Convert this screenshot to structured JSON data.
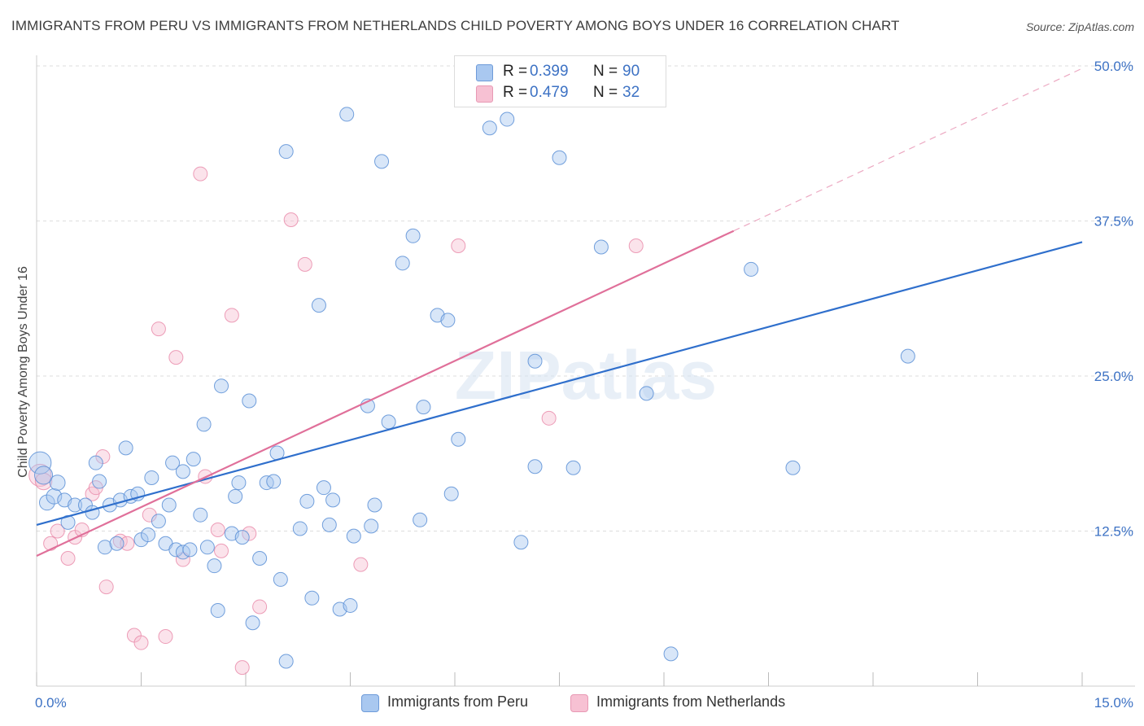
{
  "title": "IMMIGRANTS FROM PERU VS IMMIGRANTS FROM NETHERLANDS CHILD POVERTY AMONG BOYS UNDER 16 CORRELATION CHART",
  "source": "Source: ZipAtlas.com",
  "watermark": "ZIPatlas",
  "legend": {
    "peru": {
      "r_label": "R =",
      "r_value": "0.399",
      "n_label": "N =",
      "n_value": "90"
    },
    "netherlands": {
      "r_label": "R =",
      "r_value": "0.479",
      "n_label": "N =",
      "n_value": "32"
    }
  },
  "bottom_legend": {
    "peru": "Immigrants from Peru",
    "netherlands": "Immigrants from Netherlands"
  },
  "colors": {
    "peru_fill": "#a9c8f0",
    "peru_stroke": "#5b8fd6",
    "peru_line": "#2f6fcc",
    "neth_fill": "#f7c1d3",
    "neth_stroke": "#e887a8",
    "neth_line": "#e0709a",
    "tick_label": "#3d72c4",
    "grid": "#dddddd"
  },
  "chart_data": {
    "type": "scatter",
    "title": "IMMIGRANTS FROM PERU VS IMMIGRANTS FROM NETHERLANDS CHILD POVERTY AMONG BOYS UNDER 16 CORRELATION CHART",
    "xlabel": "",
    "ylabel": "Child Poverty Among Boys Under 16",
    "xlim": [
      0,
      15
    ],
    "ylim": [
      0,
      50
    ],
    "x_tick_labels": [
      "0.0%",
      "15.0%"
    ],
    "y_ticks": [
      12.5,
      25.0,
      37.5,
      50.0
    ],
    "y_tick_labels": [
      "12.5%",
      "25.0%",
      "37.5%",
      "50.0%"
    ],
    "grid": true,
    "legend_position": "top-center",
    "series": [
      {
        "name": "Immigrants from Peru",
        "r": 0.399,
        "n": 90,
        "trend": {
          "x0": 0.0,
          "y0": 13.0,
          "x1": 15.0,
          "y1": 35.8
        },
        "points": [
          [
            0.05,
            18.0,
            1.6
          ],
          [
            0.1,
            17.0,
            1.3
          ],
          [
            0.15,
            14.8,
            1.1
          ],
          [
            0.25,
            15.3,
            1.1
          ],
          [
            0.3,
            16.4,
            1.1
          ],
          [
            0.4,
            15.0,
            1.0
          ],
          [
            0.45,
            13.2,
            1.0
          ],
          [
            0.55,
            14.6,
            1.0
          ],
          [
            0.7,
            14.6,
            1.0
          ],
          [
            0.8,
            14.0,
            1.0
          ],
          [
            0.85,
            18.0,
            1.0
          ],
          [
            0.9,
            16.5,
            1.0
          ],
          [
            0.98,
            11.2,
            1.0
          ],
          [
            1.05,
            14.6,
            1.0
          ],
          [
            1.15,
            11.5,
            1.0
          ],
          [
            1.2,
            15.0,
            1.0
          ],
          [
            1.28,
            19.2,
            1.0
          ],
          [
            1.35,
            15.3,
            1.0
          ],
          [
            1.45,
            15.5,
            1.0
          ],
          [
            1.5,
            11.8,
            1.0
          ],
          [
            1.6,
            12.2,
            1.0
          ],
          [
            1.65,
            16.8,
            1.0
          ],
          [
            1.75,
            13.3,
            1.0
          ],
          [
            1.85,
            11.5,
            1.0
          ],
          [
            1.9,
            14.6,
            1.0
          ],
          [
            1.95,
            18.0,
            1.0
          ],
          [
            2.0,
            11.0,
            1.0
          ],
          [
            2.1,
            10.8,
            1.0
          ],
          [
            2.1,
            17.3,
            1.0
          ],
          [
            2.2,
            11.0,
            1.0
          ],
          [
            2.25,
            18.3,
            1.0
          ],
          [
            2.35,
            13.8,
            1.0
          ],
          [
            2.4,
            21.1,
            1.0
          ],
          [
            2.45,
            11.2,
            1.0
          ],
          [
            2.55,
            9.7,
            1.0
          ],
          [
            2.6,
            6.1,
            1.0
          ],
          [
            2.65,
            24.2,
            1.0
          ],
          [
            2.8,
            12.3,
            1.0
          ],
          [
            2.85,
            15.3,
            1.0
          ],
          [
            2.9,
            16.4,
            1.0
          ],
          [
            2.95,
            12.0,
            1.0
          ],
          [
            3.05,
            23.0,
            1.0
          ],
          [
            3.1,
            5.1,
            1.0
          ],
          [
            3.2,
            10.3,
            1.0
          ],
          [
            3.3,
            16.4,
            1.0
          ],
          [
            3.4,
            16.5,
            1.0
          ],
          [
            3.45,
            18.8,
            1.0
          ],
          [
            3.5,
            8.6,
            1.0
          ],
          [
            3.58,
            2.0,
            1.0
          ],
          [
            3.58,
            43.1,
            1.0
          ],
          [
            3.78,
            12.7,
            1.0
          ],
          [
            3.88,
            14.9,
            1.0
          ],
          [
            3.95,
            7.1,
            1.0
          ],
          [
            4.05,
            30.7,
            1.0
          ],
          [
            4.12,
            16.0,
            1.0
          ],
          [
            4.2,
            13.0,
            1.0
          ],
          [
            4.25,
            15.0,
            1.0
          ],
          [
            4.35,
            6.2,
            1.0
          ],
          [
            4.45,
            46.1,
            1.0
          ],
          [
            4.5,
            6.5,
            1.0
          ],
          [
            4.55,
            12.1,
            1.0
          ],
          [
            4.75,
            22.6,
            1.0
          ],
          [
            4.8,
            12.9,
            1.0
          ],
          [
            4.85,
            14.6,
            1.0
          ],
          [
            4.95,
            42.3,
            1.0
          ],
          [
            5.05,
            21.3,
            1.0
          ],
          [
            5.25,
            34.1,
            1.0
          ],
          [
            5.4,
            36.3,
            1.0
          ],
          [
            5.5,
            13.4,
            1.0
          ],
          [
            5.55,
            22.5,
            1.0
          ],
          [
            5.75,
            29.9,
            1.0
          ],
          [
            5.9,
            29.5,
            1.0
          ],
          [
            5.95,
            15.5,
            1.0
          ],
          [
            6.05,
            19.9,
            1.0
          ],
          [
            6.5,
            45.0,
            1.0
          ],
          [
            6.75,
            45.7,
            1.0
          ],
          [
            6.95,
            11.6,
            1.0
          ],
          [
            7.15,
            26.2,
            1.0
          ],
          [
            7.15,
            17.7,
            1.0
          ],
          [
            7.5,
            42.6,
            1.0
          ],
          [
            7.7,
            17.6,
            1.0
          ],
          [
            8.1,
            35.4,
            1.0
          ],
          [
            8.75,
            23.6,
            1.0
          ],
          [
            9.1,
            2.6,
            1.0
          ],
          [
            10.25,
            33.6,
            1.0
          ],
          [
            10.85,
            17.6,
            1.0
          ],
          [
            12.5,
            26.6,
            1.0
          ]
        ]
      },
      {
        "name": "Immigrants from Netherlands",
        "r": 0.479,
        "n": 32,
        "trend": {
          "x0": 0.0,
          "y0": 10.5,
          "x1": 10.0,
          "y1": 36.7,
          "dashed_to": {
            "x": 15.0,
            "y": 49.8
          }
        },
        "points": [
          [
            0.05,
            17.0,
            1.6
          ],
          [
            0.1,
            16.5,
            1.2
          ],
          [
            0.2,
            11.5,
            1.0
          ],
          [
            0.3,
            12.5,
            1.0
          ],
          [
            0.45,
            10.3,
            1.0
          ],
          [
            0.55,
            12.0,
            1.0
          ],
          [
            0.65,
            12.6,
            1.0
          ],
          [
            0.8,
            15.5,
            1.0
          ],
          [
            0.85,
            16.0,
            1.0
          ],
          [
            0.95,
            18.5,
            1.0
          ],
          [
            1.0,
            8.0,
            1.0
          ],
          [
            1.2,
            11.7,
            1.0
          ],
          [
            1.3,
            11.5,
            1.0
          ],
          [
            1.4,
            4.1,
            1.0
          ],
          [
            1.5,
            3.5,
            1.0
          ],
          [
            1.62,
            13.8,
            1.0
          ],
          [
            1.75,
            28.8,
            1.0
          ],
          [
            1.85,
            4.0,
            1.0
          ],
          [
            2.0,
            26.5,
            1.0
          ],
          [
            2.1,
            10.2,
            1.0
          ],
          [
            2.35,
            41.3,
            1.0
          ],
          [
            2.42,
            16.9,
            1.0
          ],
          [
            2.6,
            12.6,
            1.0
          ],
          [
            2.65,
            10.9,
            1.0
          ],
          [
            2.8,
            29.9,
            1.0
          ],
          [
            2.95,
            1.5,
            1.0
          ],
          [
            3.05,
            12.3,
            1.0
          ],
          [
            3.2,
            6.4,
            1.0
          ],
          [
            3.65,
            37.6,
            1.0
          ],
          [
            3.85,
            34.0,
            1.0
          ],
          [
            4.65,
            9.8,
            1.0
          ],
          [
            6.05,
            35.5,
            1.0
          ],
          [
            7.35,
            21.6,
            1.0
          ],
          [
            8.6,
            35.5,
            1.0
          ]
        ]
      }
    ]
  }
}
